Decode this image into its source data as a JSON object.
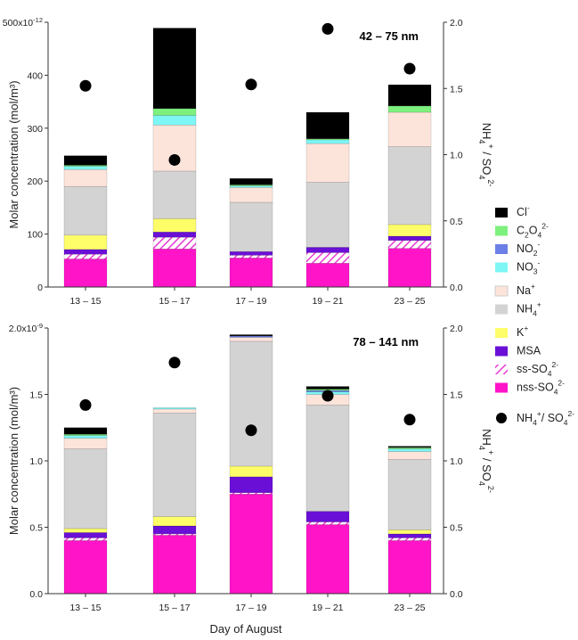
{
  "chart_data": [
    {
      "type": "bar",
      "stacked": true,
      "size_label": "42 – 75 nm",
      "categories": [
        "13 – 15",
        "15 – 17",
        "17 – 19",
        "19 – 21",
        "23 – 25"
      ],
      "ylabel": "Molar concentration (mol/m³)",
      "y_exponent_label": "x10",
      "y_exponent": "-12",
      "yticks": [
        "0",
        "100",
        "200",
        "300",
        "400",
        "500"
      ],
      "ylim": [
        0,
        500
      ],
      "y2label": "NH4+ / SO42-",
      "y2ticks": [
        "0.0",
        "0.5",
        "1.0",
        "1.5",
        "2.0"
      ],
      "y2lim": [
        0,
        2.0
      ],
      "series": [
        {
          "key": "nss",
          "values": [
            53,
            72,
            55,
            45,
            73
          ]
        },
        {
          "key": "ss",
          "values": [
            9,
            22,
            5,
            20,
            15
          ]
        },
        {
          "key": "msa",
          "values": [
            9,
            10,
            7,
            10,
            8
          ]
        },
        {
          "key": "k",
          "values": [
            27,
            25,
            0,
            0,
            22
          ]
        },
        {
          "key": "nh4",
          "values": [
            92,
            90,
            93,
            123,
            147
          ]
        },
        {
          "key": "na",
          "values": [
            32,
            87,
            28,
            73,
            65
          ]
        },
        {
          "key": "no3",
          "values": [
            6,
            18,
            3,
            7,
            0
          ]
        },
        {
          "key": "no2",
          "values": [
            0,
            0,
            0,
            0,
            0
          ]
        },
        {
          "key": "c2o4",
          "values": [
            2,
            13,
            2,
            2,
            12
          ]
        },
        {
          "key": "cl",
          "values": [
            18,
            152,
            12,
            50,
            40
          ]
        }
      ],
      "ratio_points": [
        1.52,
        0.96,
        1.53,
        1.95,
        1.65
      ]
    },
    {
      "type": "bar",
      "stacked": true,
      "size_label": "78 – 141 nm",
      "categories": [
        "13 – 15",
        "15 – 17",
        "17 – 19",
        "19 – 21",
        "23 – 25"
      ],
      "xlabel": "Day of August",
      "ylabel": "Molar concentration (mol/m³)",
      "y_exponent_label": "x10",
      "y_exponent": "-9",
      "yticks": [
        "0.0",
        "0.5",
        "1.0",
        "1.5",
        "2.0"
      ],
      "ylim": [
        0,
        2.0
      ],
      "y2label": "NH4+ / SO42-",
      "y2ticks": [
        "0.0",
        "0.5",
        "1.0",
        "1.5",
        "2.0"
      ],
      "y2lim": [
        0,
        2.0
      ],
      "series": [
        {
          "key": "nss",
          "values": [
            0.4,
            0.44,
            0.75,
            0.52,
            0.4
          ]
        },
        {
          "key": "ss",
          "values": [
            0.02,
            0.01,
            0.01,
            0.02,
            0.02
          ]
        },
        {
          "key": "msa",
          "values": [
            0.04,
            0.06,
            0.12,
            0.08,
            0.03
          ]
        },
        {
          "key": "k",
          "values": [
            0.03,
            0.07,
            0.08,
            0.0,
            0.03
          ]
        },
        {
          "key": "nh4",
          "values": [
            0.6,
            0.78,
            0.94,
            0.8,
            0.53
          ]
        },
        {
          "key": "na",
          "values": [
            0.08,
            0.03,
            0.03,
            0.08,
            0.06
          ]
        },
        {
          "key": "no3",
          "values": [
            0.02,
            0.01,
            0.0,
            0.02,
            0.02
          ]
        },
        {
          "key": "no2",
          "values": [
            0.0,
            0.0,
            0.01,
            0.01,
            0.0
          ]
        },
        {
          "key": "c2o4",
          "values": [
            0.01,
            0.0,
            0.0,
            0.01,
            0.01
          ]
        },
        {
          "key": "cl",
          "values": [
            0.05,
            0.0,
            0.01,
            0.02,
            0.01
          ]
        }
      ],
      "ratio_points": [
        1.42,
        1.74,
        1.23,
        1.49,
        1.31
      ]
    }
  ],
  "legend": [
    {
      "key": "cl",
      "main": "Cl",
      "sub": "",
      "sup": "-",
      "color": "#000000"
    },
    {
      "key": "c2o4",
      "main": "C",
      "sub": "2",
      "mid": "O",
      "sub2": "4",
      "sup": "2-",
      "color": "#7ef07e"
    },
    {
      "key": "no2",
      "main": "NO",
      "sub": "2",
      "sup": "-",
      "color": "#6b7fe6"
    },
    {
      "key": "no3",
      "main": "NO",
      "sub": "3",
      "sup": "-",
      "color": "#7ef6f6"
    },
    {
      "key": "na",
      "main": "Na",
      "sub": "",
      "sup": "+",
      "color": "#fde4da"
    },
    {
      "key": "nh4",
      "main": "NH",
      "sub": "4",
      "sup": "+",
      "color": "#d3d3d3"
    },
    {
      "key": "k",
      "main": "K",
      "sub": "",
      "sup": "+",
      "color": "#fdfd6a"
    },
    {
      "key": "msa",
      "main": "MSA",
      "sub": "",
      "sup": "",
      "color": "#6a0fd6"
    },
    {
      "key": "ss",
      "main": "ss-SO",
      "sub": "4",
      "sup": "2-",
      "color": "#e83bd2",
      "hatched": true
    },
    {
      "key": "nss",
      "main": "nss-SO",
      "sub": "4",
      "sup": "2-",
      "color": "#ff14c8"
    }
  ],
  "ratio_legend": {
    "main": "NH",
    "sub": "4",
    "sup": "+",
    "rest": "/ SO",
    "sub2": "4",
    "sup2": "2-"
  }
}
